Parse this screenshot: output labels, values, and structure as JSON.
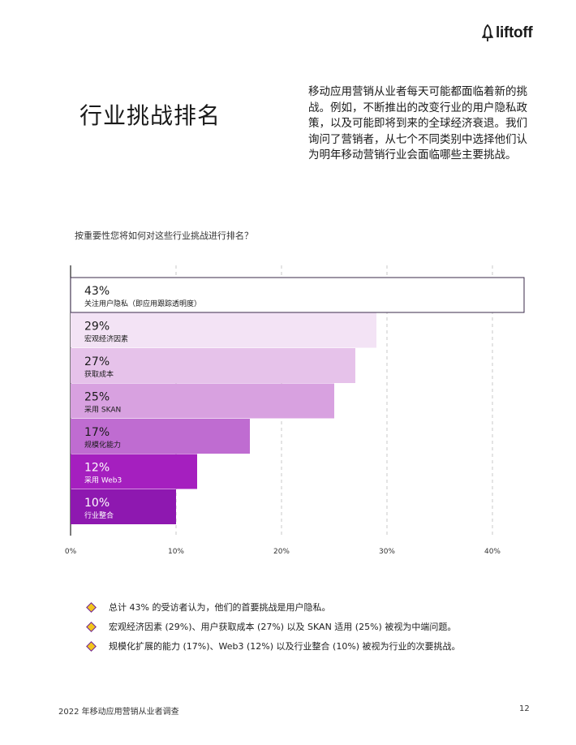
{
  "brand": {
    "name": "liftoff",
    "icon": "rocket-icon"
  },
  "page_title": "行业挑战排名",
  "intro": "移动应用营销从业者每天可能都面临着新的挑战。例如，不断推出的改变行业的用户隐私政策，以及可能即将到来的全球经济衰退。我们询问了营销者，从七个不同类别中选择他们认为明年移动营销行业会面临哪些主要挑战。",
  "question": "按重要性您将如何对这些行业挑战进行排名？",
  "chart_data": {
    "type": "bar",
    "orientation": "horizontal",
    "categories": [
      "关注用户隐私（即应用跟踪透明度）",
      "宏观经济因素",
      "获取成本",
      "采用 SKAN",
      "规模化能力",
      "采用 Web3",
      "行业整合"
    ],
    "values": [
      43,
      29,
      27,
      25,
      17,
      12,
      10
    ],
    "value_labels": [
      "43%",
      "29%",
      "27%",
      "25%",
      "17%",
      "12%",
      "10%"
    ],
    "colors": [
      "#ffffff",
      "#f3e3f5",
      "#e6c2ea",
      "#d8a1e0",
      "#bf6cd1",
      "#a51fbf",
      "#8e18b0"
    ],
    "label_colors": [
      "#1a1a1a",
      "#1a1a1a",
      "#1a1a1a",
      "#1a1a1a",
      "#1a1a1a",
      "#ffffff",
      "#ffffff"
    ],
    "xticks": [
      0,
      10,
      20,
      30,
      40
    ],
    "xtick_labels": [
      "0%",
      "10%",
      "20%",
      "30%",
      "40%"
    ],
    "xlim": [
      0,
      43
    ],
    "grid": "vertical dashed"
  },
  "bullets": [
    "总计 43% 的受访者认为，他们的首要挑战是用户隐私。",
    "宏观经济因素 (29%)、用户获取成本 (27%) 以及 SKAN 适用 (25%) 被视为中端问题。",
    "规模化扩展的能力 (17%)、Web3 (12%) 以及行业整合 (10%) 被视为行业的次要挑战。"
  ],
  "footer": {
    "report": "2022 年移动应用营销从业者调查",
    "page": "12"
  }
}
